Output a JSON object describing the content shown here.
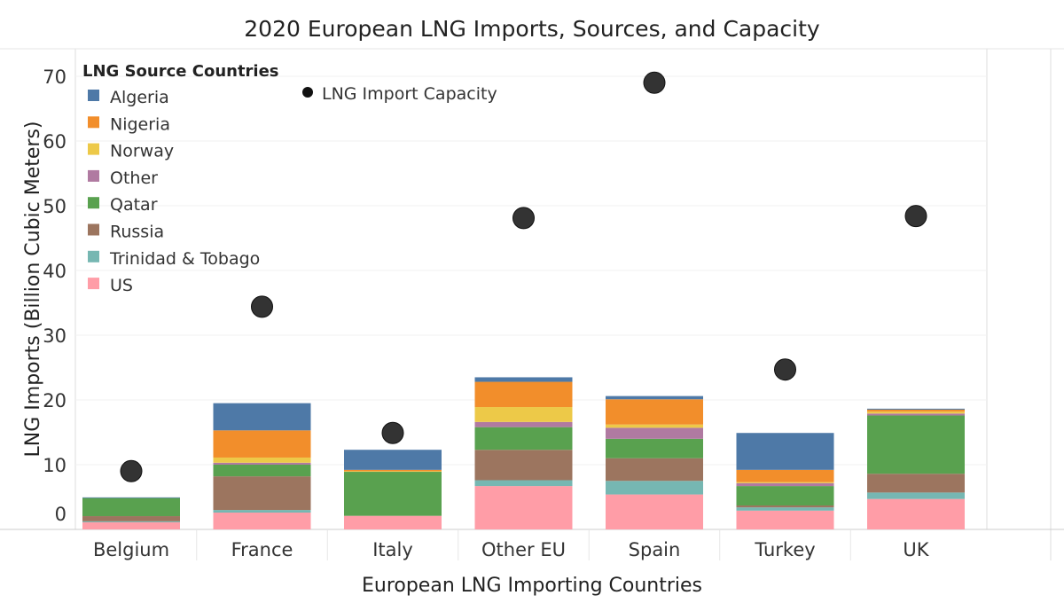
{
  "chart_data": {
    "type": "bar",
    "stacked": true,
    "title": "2020 European LNG Imports, Sources, and Capacity",
    "xlabel": "European LNG Importing Countries",
    "ylabel": "LNG Imports (Billion Cubic Meters)",
    "ylim": [
      0,
      74
    ],
    "yticks": [
      0,
      10,
      20,
      30,
      40,
      50,
      60,
      70
    ],
    "grid": true,
    "legend_title": "LNG Source Countries",
    "legend_placement": "top-left",
    "categories": [
      "Belgium",
      "France",
      "Italy",
      "Other EU",
      "Spain",
      "Turkey",
      "UK"
    ],
    "series": [
      {
        "name": "US",
        "color": "#ff9da7",
        "values": [
          1.1,
          2.6,
          2.1,
          6.7,
          5.4,
          2.9,
          4.7
        ]
      },
      {
        "name": "Trinidad & Tobago",
        "color": "#76b7b2",
        "values": [
          0.15,
          0.4,
          0,
          0.9,
          2.1,
          0.5,
          1.0
        ]
      },
      {
        "name": "Russia",
        "color": "#9c755f",
        "values": [
          0.8,
          5.2,
          0,
          4.7,
          3.5,
          0.3,
          2.9
        ]
      },
      {
        "name": "Qatar",
        "color": "#59a14f",
        "values": [
          2.8,
          1.8,
          6.8,
          3.5,
          3.0,
          3.0,
          9.0
        ]
      },
      {
        "name": "Other",
        "color": "#b07aa1",
        "values": [
          0,
          0.3,
          0,
          0.8,
          1.7,
          0.45,
          0.3
        ]
      },
      {
        "name": "Norway",
        "color": "#edc948",
        "values": [
          0,
          0.8,
          0.1,
          2.3,
          0.5,
          0.15,
          0.3
        ]
      },
      {
        "name": "Nigeria",
        "color": "#f28e2b",
        "values": [
          0,
          4.2,
          0.2,
          3.9,
          3.9,
          1.9,
          0.3
        ]
      },
      {
        "name": "Algeria",
        "color": "#4e79a7",
        "values": [
          0.1,
          4.2,
          3.1,
          0.7,
          0.5,
          5.7,
          0.15
        ]
      }
    ],
    "legend_order": [
      "Algeria",
      "Nigeria",
      "Norway",
      "Other",
      "Qatar",
      "Russia",
      "Trinidad & Tobago",
      "US"
    ],
    "capacity": {
      "name": "LNG Import Capacity",
      "color": "#333333",
      "values": [
        9.0,
        34.4,
        14.9,
        48.1,
        69.0,
        24.7,
        48.4
      ]
    }
  }
}
